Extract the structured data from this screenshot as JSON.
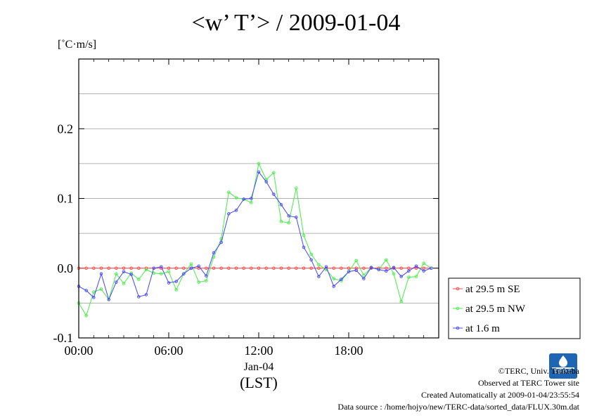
{
  "title": "<w’ T’> / 2009-01-04",
  "unit_label": "[˚C·m/s]",
  "chart_data": {
    "type": "line",
    "x_ticks": [
      0,
      6,
      12,
      18
    ],
    "x_tick_labels": [
      "00:00",
      "06:00",
      "12:00",
      "18:00"
    ],
    "x_sub_label": "Jan-04",
    "x_label": "(LST)",
    "xlim": [
      0,
      24
    ],
    "ylim": [
      -0.1,
      0.3
    ],
    "y_ticks": [
      -0.1,
      0.0,
      0.1,
      0.2
    ],
    "y_tick_labels": [
      "-0.1",
      "0.0",
      "0.1",
      "0.2"
    ],
    "grid": true,
    "legend_position": "right, outside plot",
    "series": [
      {
        "name": "at 29.5 m SE",
        "color": "#ff4444",
        "x": [
          0.0,
          0.5,
          1.0,
          1.5,
          2.0,
          2.5,
          3.0,
          3.5,
          4.0,
          4.5,
          5.0,
          5.5,
          6.0,
          6.5,
          7.0,
          7.5,
          8.0,
          8.5,
          9.0,
          9.5,
          10.0,
          10.5,
          11.0,
          11.5,
          12.0,
          12.5,
          13.0,
          13.5,
          14.0,
          14.5,
          15.0,
          15.5,
          16.0,
          16.5,
          17.0,
          17.5,
          18.0,
          18.5,
          19.0,
          19.5,
          20.0,
          20.5,
          21.0,
          21.5,
          22.0,
          22.5,
          23.0,
          23.5
        ],
        "values": [
          0,
          0,
          0,
          0,
          0,
          0,
          0,
          0,
          0,
          0,
          0,
          0,
          0,
          0,
          0,
          0,
          0,
          0,
          0,
          0,
          0,
          0,
          0,
          0,
          0,
          0,
          0,
          0,
          0,
          0,
          0,
          0,
          0,
          0,
          0,
          0,
          0,
          0,
          0,
          0,
          0,
          0,
          0,
          0,
          0,
          0,
          0,
          0
        ]
      },
      {
        "name": "at 29.5 m NW",
        "color": "#44ee44",
        "x": [
          0.0,
          0.5,
          1.0,
          1.5,
          2.0,
          2.5,
          3.0,
          3.5,
          4.0,
          4.5,
          5.0,
          5.5,
          6.0,
          6.5,
          7.0,
          7.5,
          8.0,
          8.5,
          9.0,
          9.5,
          10.0,
          10.5,
          11.0,
          11.5,
          12.0,
          12.5,
          13.0,
          13.5,
          14.0,
          14.5,
          15.0,
          15.5,
          16.0,
          16.5,
          17.0,
          17.5,
          18.0,
          18.5,
          19.0,
          19.5,
          20.0,
          20.5,
          21.0,
          21.5,
          22.0,
          22.5,
          23.0,
          23.5
        ],
        "values": [
          -0.05,
          -0.068,
          -0.034,
          -0.03,
          -0.045,
          -0.008,
          -0.022,
          -0.007,
          -0.016,
          -0.002,
          -0.007,
          -0.008,
          -0.005,
          -0.031,
          -0.008,
          0.006,
          -0.02,
          -0.018,
          0.016,
          0.042,
          0.109,
          0.101,
          0.099,
          0.094,
          0.15,
          0.127,
          0.137,
          0.067,
          0.065,
          0.115,
          0.047,
          0.02,
          0.005,
          -0.002,
          -0.015,
          -0.018,
          -0.005,
          0.011,
          -0.01,
          0.001,
          -0.002,
          0.012,
          -0.008,
          -0.048,
          -0.013,
          -0.012,
          0.007,
          0.0
        ]
      },
      {
        "name": "at 1.6 m",
        "color": "#4444ff",
        "x": [
          0.0,
          0.5,
          1.0,
          1.5,
          2.0,
          2.5,
          3.0,
          3.5,
          4.0,
          4.5,
          5.0,
          5.5,
          6.0,
          6.5,
          7.0,
          7.5,
          8.0,
          8.5,
          9.0,
          9.5,
          10.0,
          10.5,
          11.0,
          11.5,
          12.0,
          12.5,
          13.0,
          13.5,
          14.0,
          14.5,
          15.0,
          15.5,
          16.0,
          16.5,
          17.0,
          17.5,
          18.0,
          18.5,
          19.0,
          19.5,
          20.0,
          20.5,
          21.0,
          21.5,
          22.0,
          22.5,
          23.0,
          23.5
        ],
        "values": [
          -0.026,
          -0.032,
          -0.042,
          -0.008,
          -0.045,
          -0.02,
          -0.005,
          -0.009,
          -0.041,
          -0.038,
          0.0,
          0.002,
          -0.021,
          -0.019,
          -0.008,
          0.0,
          0.003,
          -0.011,
          0.022,
          0.037,
          0.078,
          0.083,
          0.099,
          0.1,
          0.138,
          0.124,
          0.106,
          0.091,
          0.075,
          0.073,
          0.03,
          0.012,
          -0.012,
          0.002,
          -0.026,
          -0.016,
          -0.005,
          -0.003,
          -0.015,
          0.001,
          -0.002,
          -0.004,
          0.001,
          -0.012,
          -0.004,
          0.003,
          -0.004,
          0.0
        ]
      }
    ]
  },
  "footer": {
    "copyright": "©TERC, Univ. Tsukuba",
    "observed": "Observed at TERC Tower site",
    "created": "Created Automatically at 2009-01-04/23:55:54",
    "source": "Data source : /home/hojyo/new/TERC-data/sorted_data/FLUX.30m.dat"
  },
  "logo_text": "TERC"
}
